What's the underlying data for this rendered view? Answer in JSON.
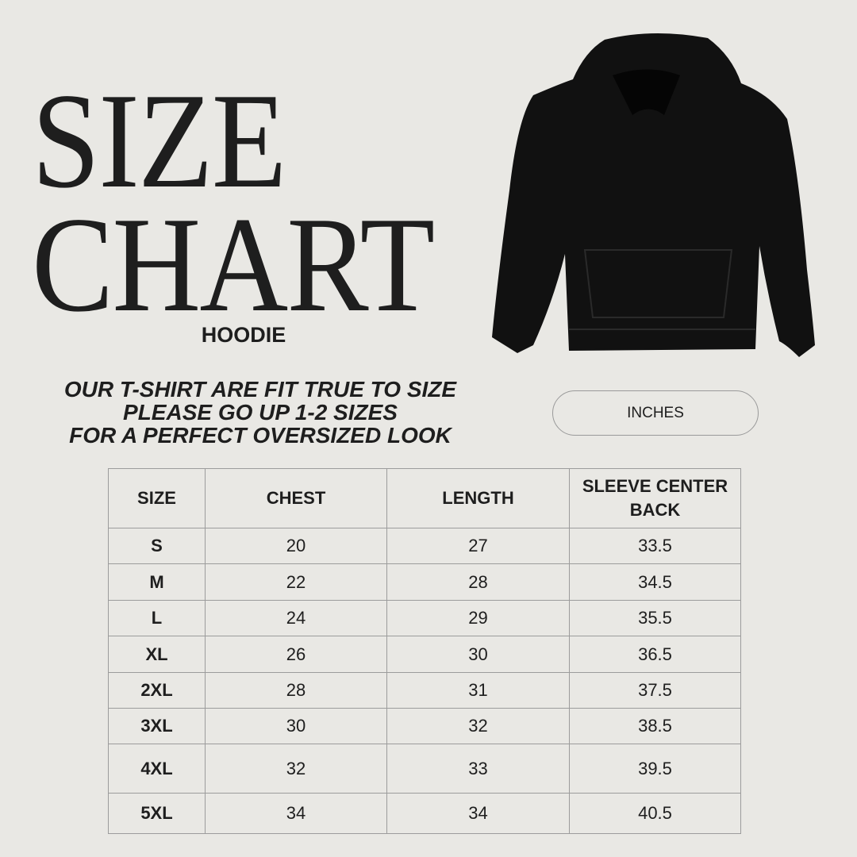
{
  "title_line1": "SIZE",
  "title_line2": "CHART",
  "product": "HOODIE",
  "note_lines": [
    "OUR T-SHIRT ARE FIT TRUE TO SIZE",
    "PLEASE GO UP 1-2 SIZES",
    "FOR A PERFECT OVERSIZED LOOK"
  ],
  "unit_label": "INCHES",
  "table": {
    "headers": [
      "SIZE",
      "CHEST",
      "LENGTH",
      "SLEEVE CENTER BACK"
    ],
    "rows": [
      [
        "S",
        "20",
        "27",
        "33.5"
      ],
      [
        "M",
        "22",
        "28",
        "34.5"
      ],
      [
        "L",
        "24",
        "29",
        "35.5"
      ],
      [
        "XL",
        "26",
        "30",
        "36.5"
      ],
      [
        "2XL",
        "28",
        "31",
        "37.5"
      ],
      [
        "3XL",
        "30",
        "32",
        "38.5"
      ],
      [
        "4XL",
        "32",
        "33",
        "39.5"
      ],
      [
        "5XL",
        "34",
        "34",
        "40.5"
      ]
    ]
  },
  "colors": {
    "background": "#e9e8e4",
    "text": "#1e1e1e",
    "border": "#9c9c9c",
    "hoodie": "#111111"
  }
}
